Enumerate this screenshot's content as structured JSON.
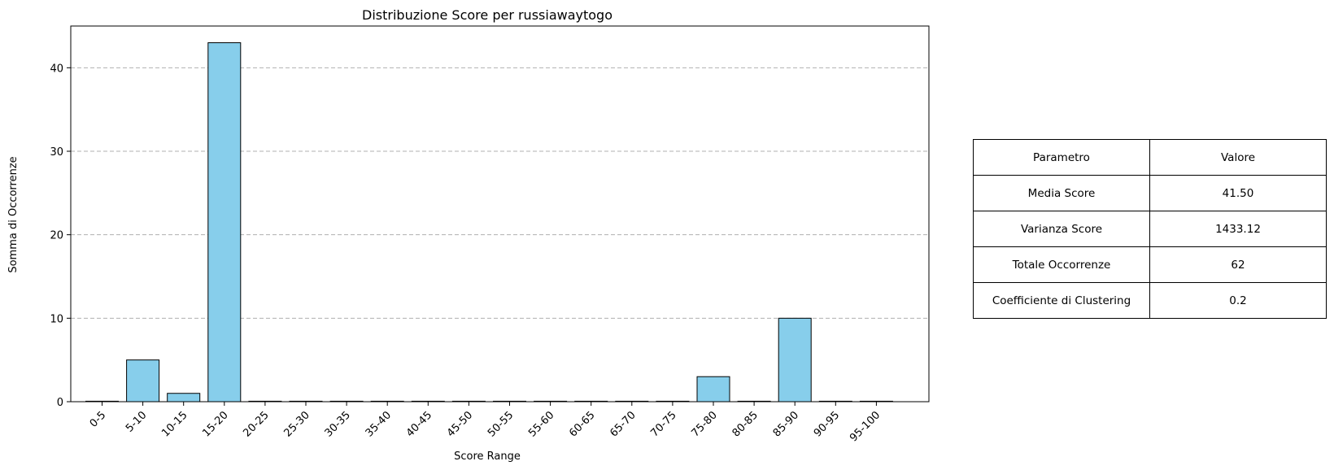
{
  "chart_data": {
    "type": "bar",
    "title": "Distribuzione Score per russiawaytogo",
    "xlabel": "Score Range",
    "ylabel": "Somma di Occorrenze",
    "categories": [
      "0-5",
      "5-10",
      "10-15",
      "15-20",
      "20-25",
      "25-30",
      "30-35",
      "35-40",
      "40-45",
      "45-50",
      "50-55",
      "55-60",
      "60-65",
      "65-70",
      "70-75",
      "75-80",
      "80-85",
      "85-90",
      "90-95",
      "95-100"
    ],
    "values": [
      0,
      5,
      1,
      43,
      0,
      0,
      0,
      0,
      0,
      0,
      0,
      0,
      0,
      0,
      0,
      3,
      0,
      10,
      0,
      0
    ],
    "ylim": [
      0,
      45
    ],
    "yticks": [
      0,
      10,
      20,
      30,
      40
    ],
    "grid": "y-dashed",
    "bar_color": "#87CEEB",
    "edge_color": "#000000"
  },
  "table": {
    "header": [
      "Parametro",
      "Valore"
    ],
    "rows": [
      [
        "Media Score",
        "41.50"
      ],
      [
        "Varianza Score",
        "1433.12"
      ],
      [
        "Totale Occorrenze",
        "62"
      ],
      [
        "Coefficiente di Clustering",
        "0.2"
      ]
    ]
  }
}
